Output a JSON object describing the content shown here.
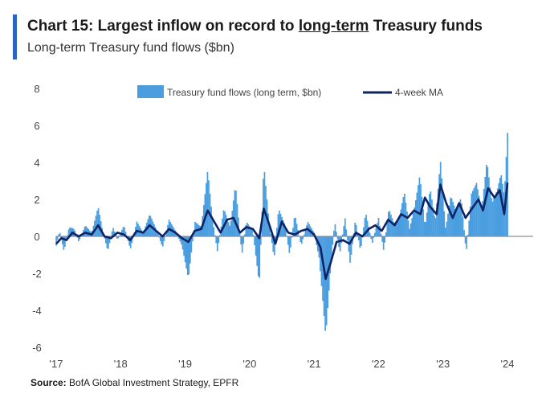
{
  "header": {
    "title_prefix": "Chart 15: Largest inflow on record to ",
    "title_underlined": "long-term",
    "title_suffix": " Treasury funds",
    "subtitle": "Long-term Treasury fund flows ($bn)"
  },
  "footer": {
    "source_label": "Source:",
    "source_text": "BofA Global Investment Strategy, EPFR"
  },
  "colors": {
    "accent": "#2b63c6",
    "bars": "#4a9ee0",
    "ma_line": "#0d2366",
    "zero_line": "#8a8f99"
  },
  "chart_data": {
    "type": "bar",
    "title": "Long-term Treasury fund flows ($bn)",
    "xlabel": "",
    "ylabel": "",
    "ylim": [
      -6,
      8
    ],
    "yticks": [
      -6,
      -4,
      -2,
      0,
      2,
      4,
      6,
      8
    ],
    "xticks": [
      "'17",
      "'18",
      "'19",
      "'20",
      "'21",
      "'22",
      "'23",
      "'24"
    ],
    "xrange": [
      2017,
      2024
    ],
    "grid": false,
    "legend_position": "top-center",
    "series": [
      {
        "name": "Treasury fund flows (long term, $bn)",
        "type": "bar",
        "anchors": [
          [
            2017.0,
            -0.5
          ],
          [
            2017.05,
            0.3
          ],
          [
            2017.12,
            -0.8
          ],
          [
            2017.2,
            0.5
          ],
          [
            2017.28,
            0.4
          ],
          [
            2017.35,
            -0.3
          ],
          [
            2017.45,
            0.6
          ],
          [
            2017.55,
            0.2
          ],
          [
            2017.65,
            1.6
          ],
          [
            2017.72,
            0.3
          ],
          [
            2017.8,
            -0.8
          ],
          [
            2017.88,
            0.5
          ],
          [
            2017.95,
            -0.2
          ],
          [
            2018.05,
            0.6
          ],
          [
            2018.15,
            -0.7
          ],
          [
            2018.25,
            0.8
          ],
          [
            2018.35,
            0.2
          ],
          [
            2018.45,
            1.2
          ],
          [
            2018.55,
            0.4
          ],
          [
            2018.65,
            -0.6
          ],
          [
            2018.75,
            0.9
          ],
          [
            2018.85,
            0.3
          ],
          [
            2018.95,
            -0.5
          ],
          [
            2019.05,
            -2.3
          ],
          [
            2019.15,
            0.8
          ],
          [
            2019.25,
            0.5
          ],
          [
            2019.35,
            3.6
          ],
          [
            2019.42,
            1.0
          ],
          [
            2019.5,
            -0.8
          ],
          [
            2019.6,
            1.5
          ],
          [
            2019.7,
            0.5
          ],
          [
            2019.78,
            2.8
          ],
          [
            2019.88,
            -1.0
          ],
          [
            2019.95,
            0.8
          ],
          [
            2020.05,
            0.3
          ],
          [
            2020.15,
            -2.6
          ],
          [
            2020.22,
            3.9
          ],
          [
            2020.3,
            0.8
          ],
          [
            2020.38,
            -1.2
          ],
          [
            2020.45,
            1.5
          ],
          [
            2020.55,
            0.6
          ],
          [
            2020.62,
            -1.0
          ],
          [
            2020.7,
            1.2
          ],
          [
            2020.8,
            -0.5
          ],
          [
            2020.9,
            0.8
          ],
          [
            2021.0,
            0.2
          ],
          [
            2021.08,
            -1.2
          ],
          [
            2021.18,
            -5.4
          ],
          [
            2021.25,
            -2.0
          ],
          [
            2021.32,
            0.8
          ],
          [
            2021.4,
            -0.9
          ],
          [
            2021.48,
            1.0
          ],
          [
            2021.56,
            -1.5
          ],
          [
            2021.64,
            0.9
          ],
          [
            2021.72,
            -0.8
          ],
          [
            2021.8,
            1.3
          ],
          [
            2021.9,
            -0.4
          ],
          [
            2022.0,
            1.0
          ],
          [
            2022.08,
            -0.8
          ],
          [
            2022.16,
            1.5
          ],
          [
            2022.24,
            0.7
          ],
          [
            2022.32,
            1.0
          ],
          [
            2022.4,
            2.4
          ],
          [
            2022.48,
            0.4
          ],
          [
            2022.56,
            1.6
          ],
          [
            2022.64,
            3.3
          ],
          [
            2022.72,
            0.5
          ],
          [
            2022.8,
            2.6
          ],
          [
            2022.88,
            0.8
          ],
          [
            2022.96,
            4.1
          ],
          [
            2023.04,
            0.4
          ],
          [
            2023.12,
            2.2
          ],
          [
            2023.2,
            1.4
          ],
          [
            2023.28,
            2.1
          ],
          [
            2023.36,
            -0.9
          ],
          [
            2023.44,
            2.3
          ],
          [
            2023.52,
            2.9
          ],
          [
            2023.6,
            1.4
          ],
          [
            2023.68,
            4.1
          ],
          [
            2023.76,
            1.8
          ],
          [
            2023.84,
            2.5
          ],
          [
            2023.9,
            3.4
          ],
          [
            2023.95,
            2.2
          ],
          [
            2024.0,
            5.6
          ]
        ]
      },
      {
        "name": "4-week MA",
        "type": "line",
        "anchors": [
          [
            2017.0,
            -0.4
          ],
          [
            2017.08,
            -0.1
          ],
          [
            2017.16,
            -0.2
          ],
          [
            2017.25,
            0.2
          ],
          [
            2017.35,
            0.0
          ],
          [
            2017.45,
            0.2
          ],
          [
            2017.55,
            0.1
          ],
          [
            2017.65,
            0.6
          ],
          [
            2017.75,
            0.0
          ],
          [
            2017.85,
            -0.1
          ],
          [
            2017.95,
            0.2
          ],
          [
            2018.05,
            0.1
          ],
          [
            2018.15,
            -0.2
          ],
          [
            2018.25,
            0.3
          ],
          [
            2018.35,
            0.2
          ],
          [
            2018.45,
            0.6
          ],
          [
            2018.55,
            0.3
          ],
          [
            2018.65,
            0.0
          ],
          [
            2018.75,
            0.4
          ],
          [
            2018.85,
            0.2
          ],
          [
            2018.95,
            -0.1
          ],
          [
            2019.05,
            -0.3
          ],
          [
            2019.15,
            0.3
          ],
          [
            2019.25,
            0.4
          ],
          [
            2019.35,
            1.4
          ],
          [
            2019.45,
            0.8
          ],
          [
            2019.55,
            0.2
          ],
          [
            2019.65,
            0.9
          ],
          [
            2019.75,
            1.0
          ],
          [
            2019.85,
            0.2
          ],
          [
            2019.95,
            0.5
          ],
          [
            2020.05,
            0.4
          ],
          [
            2020.15,
            -0.1
          ],
          [
            2020.22,
            1.5
          ],
          [
            2020.3,
            0.7
          ],
          [
            2020.4,
            -0.4
          ],
          [
            2020.5,
            0.8
          ],
          [
            2020.6,
            0.2
          ],
          [
            2020.7,
            0.1
          ],
          [
            2020.8,
            0.3
          ],
          [
            2020.9,
            0.4
          ],
          [
            2021.0,
            0.1
          ],
          [
            2021.1,
            -0.6
          ],
          [
            2021.18,
            -2.3
          ],
          [
            2021.26,
            -1.4
          ],
          [
            2021.35,
            -0.3
          ],
          [
            2021.45,
            -0.2
          ],
          [
            2021.55,
            -0.4
          ],
          [
            2021.65,
            0.2
          ],
          [
            2021.75,
            0.0
          ],
          [
            2021.85,
            0.4
          ],
          [
            2021.95,
            0.6
          ],
          [
            2022.05,
            0.3
          ],
          [
            2022.15,
            0.9
          ],
          [
            2022.25,
            0.6
          ],
          [
            2022.35,
            1.2
          ],
          [
            2022.45,
            1.0
          ],
          [
            2022.55,
            1.4
          ],
          [
            2022.65,
            1.2
          ],
          [
            2022.72,
            2.1
          ],
          [
            2022.8,
            1.6
          ],
          [
            2022.9,
            1.2
          ],
          [
            2022.96,
            2.8
          ],
          [
            2023.05,
            1.8
          ],
          [
            2023.15,
            1.0
          ],
          [
            2023.25,
            1.8
          ],
          [
            2023.35,
            1.0
          ],
          [
            2023.45,
            1.5
          ],
          [
            2023.55,
            2.0
          ],
          [
            2023.62,
            1.4
          ],
          [
            2023.7,
            2.6
          ],
          [
            2023.8,
            2.1
          ],
          [
            2023.88,
            2.5
          ],
          [
            2023.95,
            1.2
          ],
          [
            2024.0,
            2.9
          ]
        ]
      }
    ]
  }
}
